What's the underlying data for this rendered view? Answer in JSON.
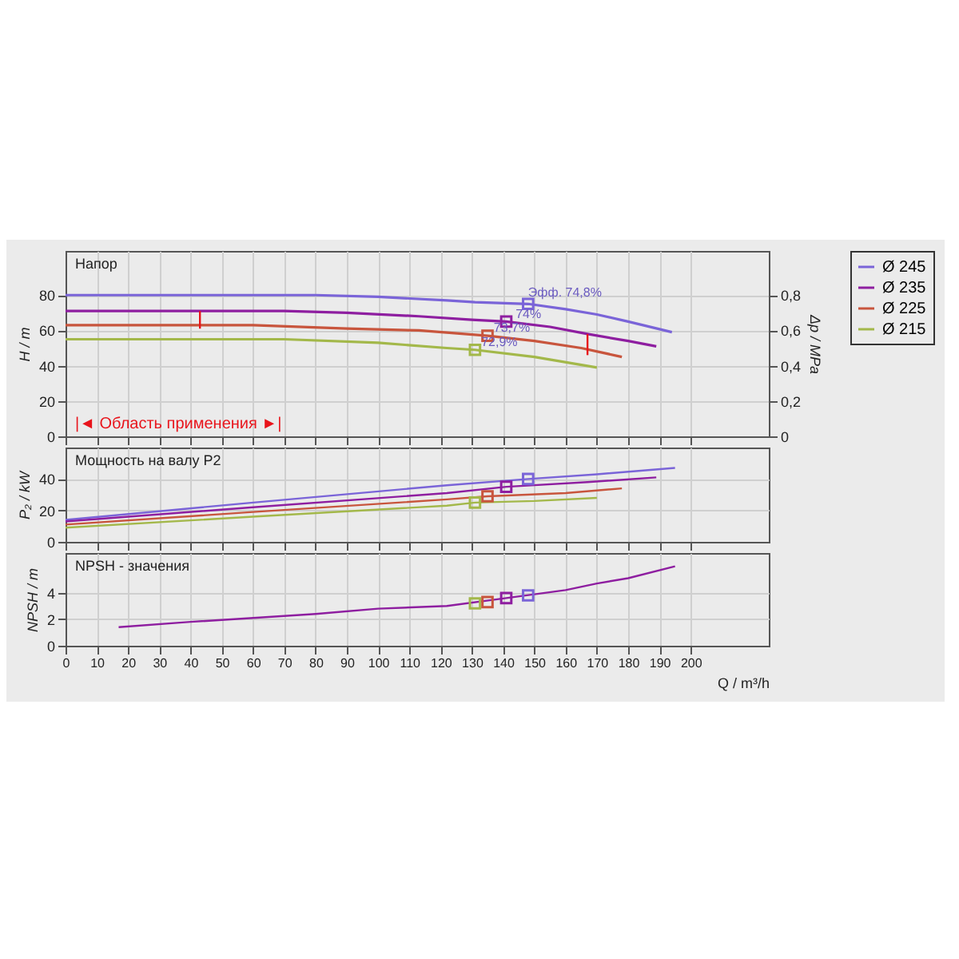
{
  "chart_data": [
    {
      "type": "line",
      "title": "Напор",
      "ylabel": "H / m",
      "y2label": "Δp / MPa",
      "xlim": [
        0,
        225
      ],
      "xticks": [
        0,
        10,
        20,
        30,
        40,
        50,
        60,
        70,
        80,
        90,
        100,
        110,
        120,
        130,
        140,
        150,
        160,
        170,
        180,
        190,
        200
      ],
      "ylim": [
        0,
        105
      ],
      "yticks": [
        0,
        20,
        40,
        60,
        80
      ],
      "y2lim": [
        0,
        1.05
      ],
      "y2ticks": [
        0,
        {
          "value": 0.2,
          "label": "0,2"
        },
        {
          "value": 0.4,
          "label": "0,4"
        },
        {
          "value": 0.6,
          "label": "0,6"
        },
        {
          "value": 0.8,
          "label": "0,8"
        }
      ],
      "grid": true,
      "legend": "right",
      "tick_labels": "y",
      "marker": "none",
      "line_style": "solid",
      "series": [
        {
          "name": "Ø 245",
          "color": "#7a64d8",
          "x": [
            0,
            44,
            60,
            80,
            100,
            122,
            131,
            148,
            160,
            170,
            180,
            194
          ],
          "values": [
            80,
            80,
            80,
            80,
            79,
            77,
            76,
            75,
            72,
            69,
            65,
            59
          ]
        },
        {
          "name": "Ø 235",
          "color": "#8e1ea0",
          "x": [
            0,
            44,
            70,
            90,
            113,
            130,
            141,
            155,
            167,
            180,
            189
          ],
          "values": [
            71,
            71,
            71,
            70,
            68,
            66,
            65,
            62,
            58,
            54,
            51
          ]
        },
        {
          "name": "Ø 225",
          "color": "#c8553d",
          "x": [
            0,
            44,
            60,
            90,
            113,
            135,
            150,
            165,
            178
          ],
          "values": [
            63,
            63,
            63,
            61,
            60,
            57,
            54,
            50,
            45
          ]
        },
        {
          "name": "Ø 215",
          "color": "#a3b84a",
          "x": [
            0,
            44,
            70,
            100,
            122,
            131,
            150,
            170
          ],
          "values": [
            55,
            55,
            55,
            53,
            50,
            49,
            45,
            39
          ]
        },
        {
          "color": "#e8141b",
          "x": [
            43,
            43
          ],
          "values": [
            71,
            61
          ]
        },
        {
          "color": "#e8141b",
          "x": [
            167,
            167
          ],
          "values": [
            58,
            46
          ]
        },
        {
          "type": "scatter",
          "marker": "square",
          "x": [
            131,
            135,
            141,
            148
          ],
          "values": [
            49,
            57,
            65,
            75
          ],
          "colors": [
            "#a3b84a",
            "#c8553d",
            "#8e1ea0",
            "#7a64d8"
          ]
        }
      ],
      "annotations": [
        {
          "text": "Эфф.  74,8%",
          "x": 148,
          "y": 81
        },
        {
          "text": "74%",
          "x": 144,
          "y": 69
        },
        {
          "text": "73,7%",
          "x": 137,
          "y": 61
        },
        {
          "text": "72,9%",
          "x": 133,
          "y": 53
        },
        "|◄ Область применения ►|"
      ]
    },
    {
      "type": "line",
      "title": "Мощность на валу P2",
      "ylabel": "P₂ / kW",
      "xlim": [
        0,
        225
      ],
      "xticks": [
        0,
        10,
        20,
        30,
        40,
        50,
        60,
        70,
        80,
        90,
        100,
        110,
        120,
        130,
        140,
        150,
        160,
        170,
        180,
        190,
        200
      ],
      "ylim": [
        0,
        60
      ],
      "yticks": [
        0,
        20,
        40
      ],
      "grid": true,
      "tick_labels": "y",
      "marker": "none",
      "line_style": "solid",
      "series": [
        {
          "color": "#7a64d8",
          "x": [
            0,
            60,
            122,
            148,
            170,
            195
          ],
          "values": [
            14,
            25,
            36,
            40,
            43,
            47
          ]
        },
        {
          "color": "#8e1ea0",
          "x": [
            0,
            60,
            122,
            141,
            167,
            189
          ],
          "values": [
            13,
            22,
            31,
            35,
            38,
            41
          ]
        },
        {
          "color": "#c8553d",
          "x": [
            0,
            60,
            122,
            135,
            160,
            178
          ],
          "values": [
            11,
            19,
            27,
            29,
            31,
            34
          ]
        },
        {
          "color": "#a3b84a",
          "x": [
            0,
            60,
            122,
            131,
            150,
            170
          ],
          "values": [
            9,
            16,
            23,
            25,
            26,
            28
          ]
        },
        {
          "type": "scatter",
          "marker": "square",
          "x": [
            131,
            135,
            141,
            148
          ],
          "values": [
            25,
            29,
            35,
            40
          ],
          "colors": [
            "#a3b84a",
            "#c8553d",
            "#8e1ea0",
            "#7a64d8"
          ]
        }
      ]
    },
    {
      "type": "line",
      "title": "NPSH - значения",
      "ylabel": "NPSH / m",
      "xlabel": "Q / m³/h",
      "xlim": [
        0,
        225
      ],
      "xticks": [
        0,
        10,
        20,
        30,
        40,
        50,
        60,
        70,
        80,
        90,
        100,
        110,
        120,
        130,
        140,
        150,
        160,
        170,
        180,
        190,
        200
      ],
      "ylim": [
        0,
        7
      ],
      "yticks": [
        0,
        2,
        4
      ],
      "grid": true,
      "marker": "none",
      "line_style": "solid",
      "series": [
        {
          "color": "#8e1ea0",
          "x": [
            17,
            40,
            60,
            80,
            100,
            122,
            141,
            160,
            170,
            180,
            195
          ],
          "values": [
            1.4,
            1.8,
            2.1,
            2.4,
            2.8,
            3.0,
            3.6,
            4.2,
            4.7,
            5.1,
            6.0
          ]
        },
        {
          "type": "scatter",
          "marker": "square",
          "x": [
            131,
            135,
            141,
            148
          ],
          "values": [
            3.2,
            3.3,
            3.6,
            3.8
          ],
          "colors": [
            "#a3b84a",
            "#c8553d",
            "#8e1ea0",
            "#7a64d8"
          ]
        }
      ]
    }
  ]
}
